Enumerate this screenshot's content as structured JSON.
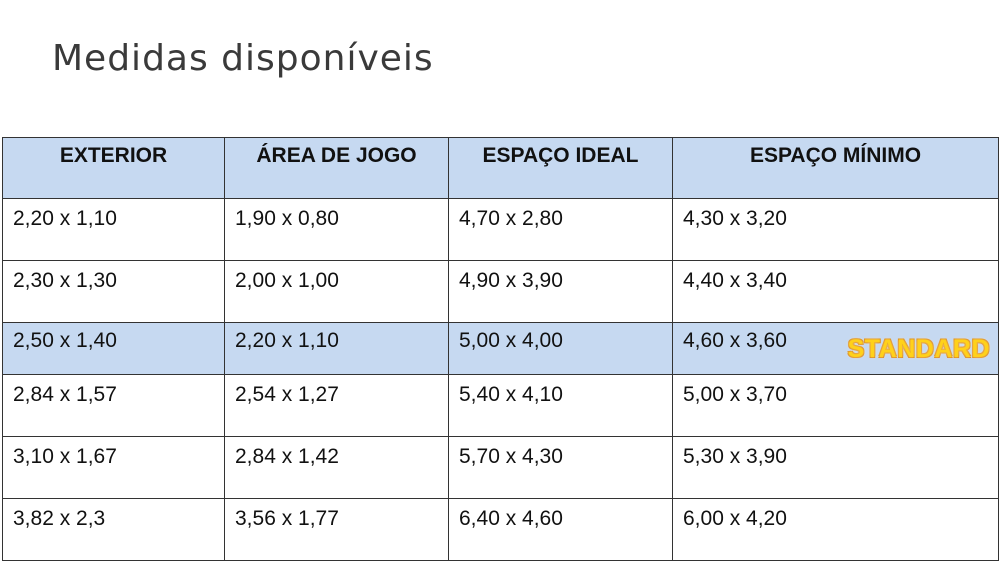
{
  "title": "Medidas disponíveis",
  "table": {
    "header": [
      "EXTERIOR",
      "ÁREA DE JOGO",
      "ESPAÇO IDEAL",
      "ESPAÇO MÍNIMO"
    ],
    "rows": [
      [
        "2,20 x 1,10",
        "1,90 x 0,80",
        "4,70 x 2,80",
        "4,30 x 3,20"
      ],
      [
        "2,30 x 1,30",
        "2,00 x 1,00",
        "4,90 x 3,90",
        "4,40 x 3,40"
      ],
      [
        "2,50 x 1,40",
        "2,20 x 1,10",
        "5,00 x 4,00",
        "4,60 x 3,60"
      ],
      [
        "2,84 x 1,57",
        "2,54 x 1,27",
        "5,40 x 4,10",
        "5,00 x 3,70"
      ],
      [
        "3,10 x 1,67",
        "2,84 x 1,42",
        "5,70 x 4,30",
        "5,30 x 3,90"
      ],
      [
        "3,82 x 2,3",
        "3,56 x 1,77",
        "6,40 x 4,60",
        "6,00 x 4,20"
      ]
    ]
  },
  "badge": "STANDARD"
}
